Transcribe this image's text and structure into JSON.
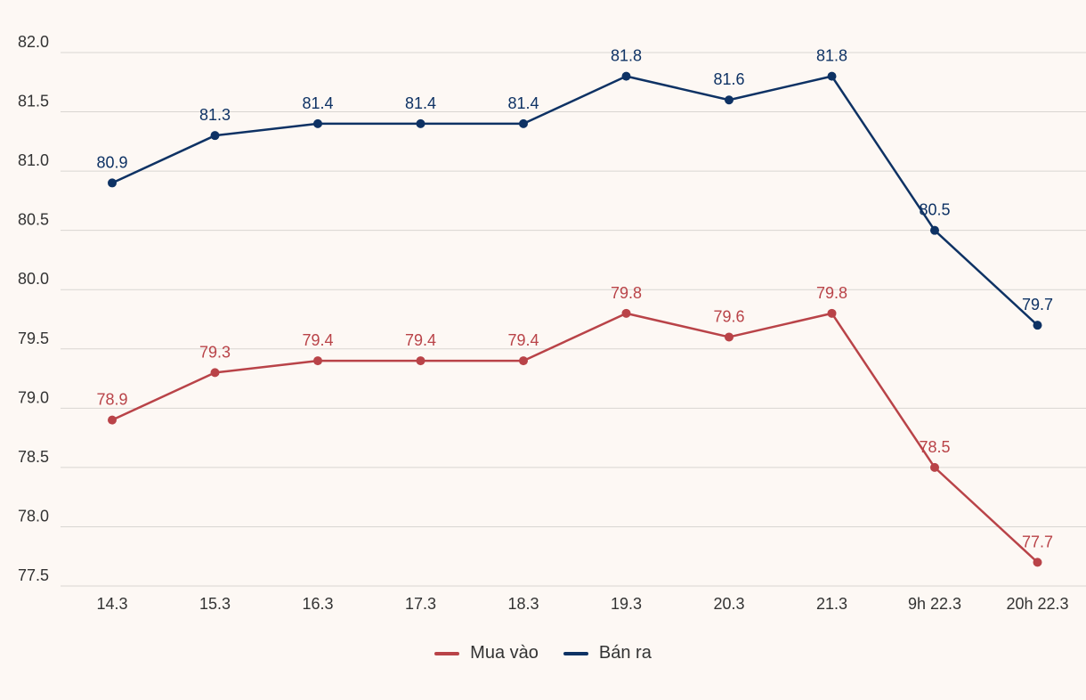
{
  "chart_data": {
    "type": "line",
    "categories": [
      "14.3",
      "15.3",
      "16.3",
      "17.3",
      "18.3",
      "19.3",
      "20.3",
      "21.3",
      "9h 22.3",
      "20h 22.3"
    ],
    "series": [
      {
        "name": "Mua vào",
        "color": "#b94348",
        "values": [
          78.9,
          79.3,
          79.4,
          79.4,
          79.4,
          79.8,
          79.6,
          79.8,
          78.5,
          77.7
        ]
      },
      {
        "name": "Bán ra",
        "color": "#0e3264",
        "values": [
          80.9,
          81.3,
          81.4,
          81.4,
          81.4,
          81.8,
          81.6,
          81.8,
          80.5,
          79.7
        ]
      }
    ],
    "yticks": [
      "77.5",
      "78.0",
      "78.5",
      "79.0",
      "79.5",
      "80.0",
      "80.5",
      "81.0",
      "81.5",
      "82.0"
    ],
    "ylim": [
      77.5,
      82.0
    ],
    "grid": true,
    "legend_position": "bottom-center",
    "data_labels": true
  }
}
